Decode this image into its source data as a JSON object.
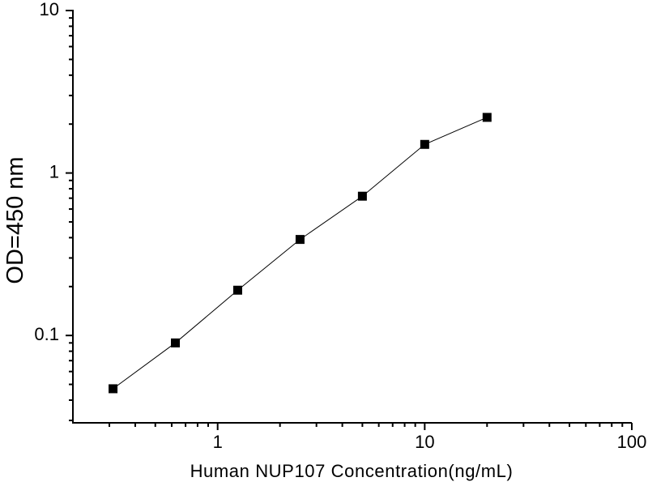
{
  "figure": {
    "background": "#ffffff",
    "text_color": "#000000",
    "axis_color": "#000000"
  },
  "chart_data": {
    "type": "line",
    "title": "",
    "xlabel": "Human NUP107 Concentration(ng/mL)",
    "ylabel": "OD=450 nm",
    "x_scale": "log",
    "y_scale": "log",
    "xlim": [
      0.2,
      100
    ],
    "ylim": [
      0.029,
      10
    ],
    "grid": false,
    "legend_position": "none",
    "x_major_ticks": [
      {
        "value": 1,
        "label": "1"
      },
      {
        "value": 10,
        "label": "10"
      },
      {
        "value": 100,
        "label": "100"
      }
    ],
    "y_major_ticks": [
      {
        "value": 10,
        "label": "10"
      },
      {
        "value": 1,
        "label": "1"
      },
      {
        "value": 0.1,
        "label": "0.1"
      }
    ],
    "minor_ticks": true,
    "series": [
      {
        "marker": "filled-square",
        "marker_color": "#000000",
        "line_color": "#000000",
        "points": [
          {
            "x": 0.3125,
            "y": 0.047
          },
          {
            "x": 0.625,
            "y": 0.09
          },
          {
            "x": 1.25,
            "y": 0.19
          },
          {
            "x": 2.5,
            "y": 0.39
          },
          {
            "x": 5,
            "y": 0.72
          },
          {
            "x": 10,
            "y": 1.5
          },
          {
            "x": 20,
            "y": 2.2
          }
        ]
      }
    ]
  }
}
